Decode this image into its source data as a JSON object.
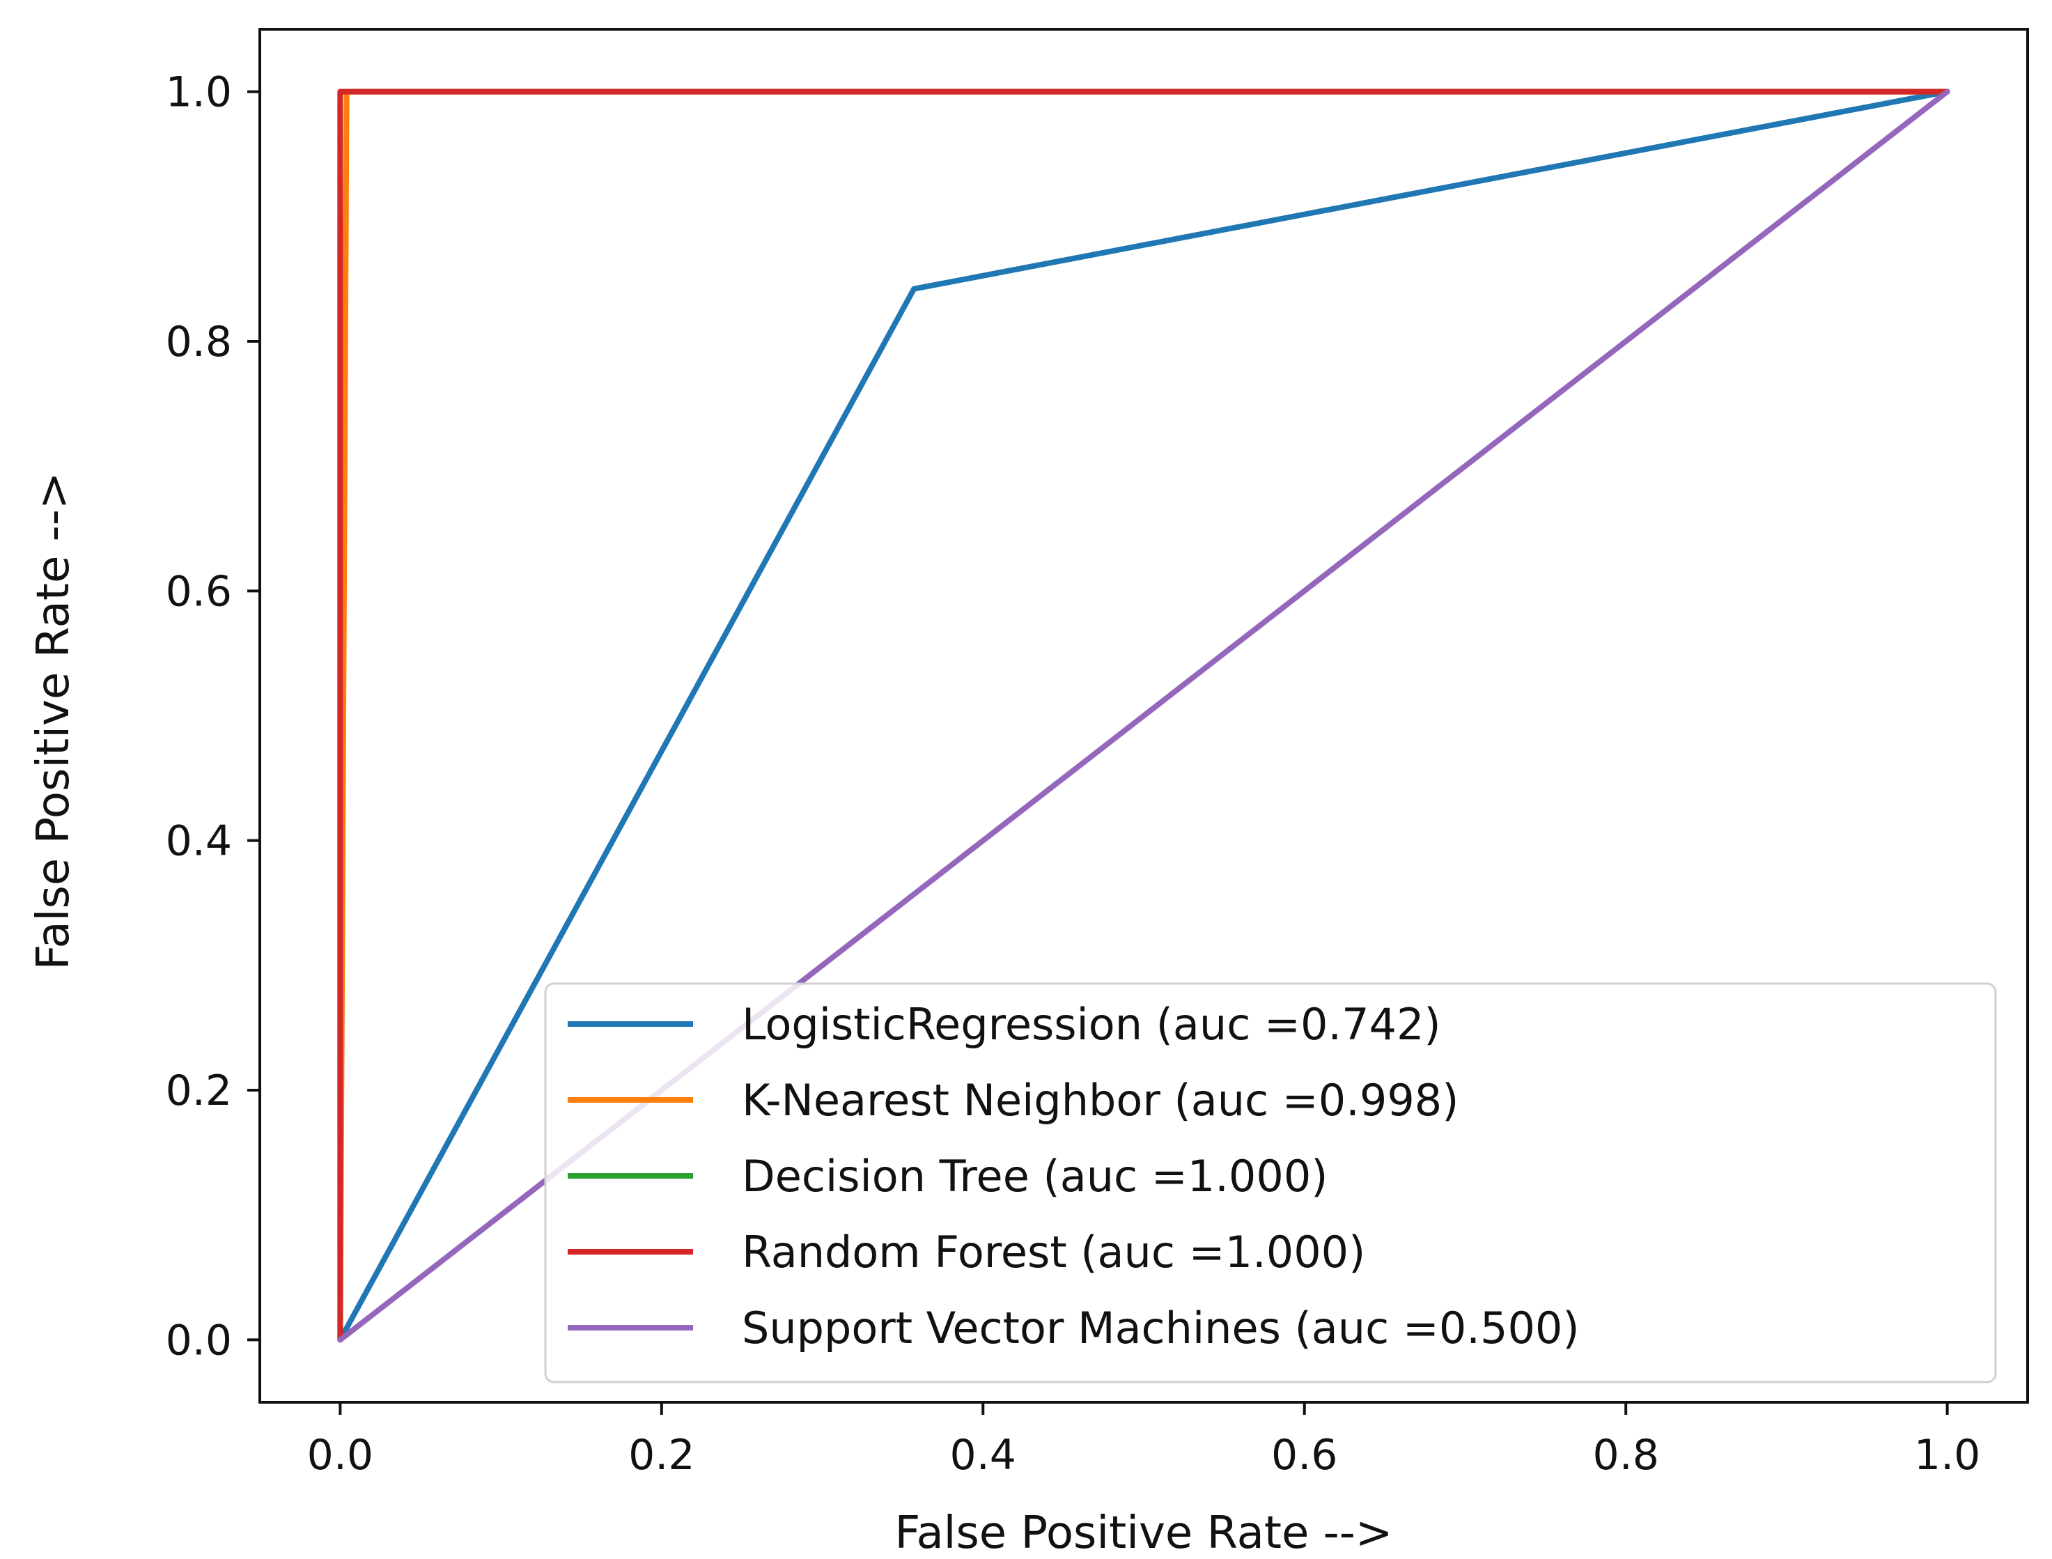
{
  "chart_data": {
    "type": "line",
    "title": "",
    "xlabel": "False Positive Rate -->",
    "ylabel": "False Positive Rate -->",
    "xlim": [
      -0.05,
      1.05
    ],
    "ylim": [
      -0.05,
      1.05
    ],
    "xticks": [
      0.0,
      0.2,
      0.4,
      0.6,
      0.8,
      1.0
    ],
    "yticks": [
      0.0,
      0.2,
      0.4,
      0.6,
      0.8,
      1.0
    ],
    "xtick_labels": [
      "0.0",
      "0.2",
      "0.4",
      "0.6",
      "0.8",
      "1.0"
    ],
    "ytick_labels": [
      "0.0",
      "0.2",
      "0.4",
      "0.6",
      "0.8",
      "1.0"
    ],
    "grid": false,
    "legend_position": "lower-right",
    "series": [
      {
        "name": "LogisticRegression (auc =0.742)",
        "color": "#1f77b4",
        "x": [
          0.0,
          0.357,
          1.0
        ],
        "y": [
          0.0,
          0.842,
          1.0
        ]
      },
      {
        "name": "K-Nearest Neighbor (auc =0.998)",
        "color": "#ff7f0e",
        "x": [
          0.0,
          0.004,
          1.0
        ],
        "y": [
          0.0,
          1.0,
          1.0
        ]
      },
      {
        "name": "Decision Tree (auc =1.000)",
        "color": "#2ca02c",
        "x": [
          0.0,
          0.0,
          1.0
        ],
        "y": [
          0.0,
          1.0,
          1.0
        ]
      },
      {
        "name": "Random Forest (auc =1.000)",
        "color": "#d62728",
        "x": [
          0.0,
          0.0,
          1.0
        ],
        "y": [
          0.0,
          1.0,
          1.0
        ]
      },
      {
        "name": "Support Vector Machines (auc =0.500)",
        "color": "#9467bd",
        "x": [
          0.0,
          1.0
        ],
        "y": [
          0.0,
          1.0
        ]
      }
    ]
  }
}
